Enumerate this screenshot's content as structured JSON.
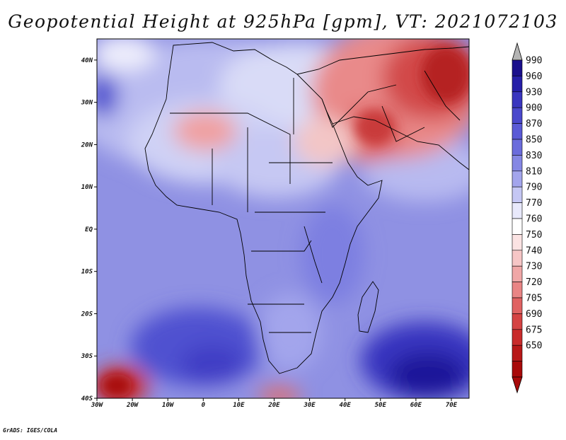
{
  "title": "Geopotential Height at 925hPa [gpm], VT: 2021072103",
  "credit": "GrADS: IGES/COLA",
  "lat_labels": [
    "40N",
    "30N",
    "20N",
    "10N",
    "EQ",
    "10S",
    "20S",
    "30S",
    "40S"
  ],
  "lon_labels": [
    "30W",
    "20W",
    "10W",
    "0",
    "10E",
    "20E",
    "30E",
    "40E",
    "50E",
    "60E",
    "70E"
  ],
  "colorbar": {
    "labels": [
      "990",
      "960",
      "930",
      "900",
      "870",
      "850",
      "830",
      "810",
      "790",
      "770",
      "760",
      "750",
      "740",
      "730",
      "720",
      "705",
      "690",
      "675",
      "650"
    ],
    "colors": [
      "#1a0f8c",
      "#261fa8",
      "#3a36bf",
      "#4a48cc",
      "#5a5ad6",
      "#6b6cdc",
      "#8587e4",
      "#a3a5ec",
      "#c5c7f4",
      "#e8e9fb",
      "#ffffff",
      "#fbe3e3",
      "#f6c6c6",
      "#f0a7a7",
      "#e98585",
      "#e06262",
      "#d54343",
      "#c92b2b",
      "#b81818",
      "#a80a0a"
    ],
    "top_arrow_color": "#b4b4b4",
    "bottom_arrow_color": "#a80a0a"
  }
}
